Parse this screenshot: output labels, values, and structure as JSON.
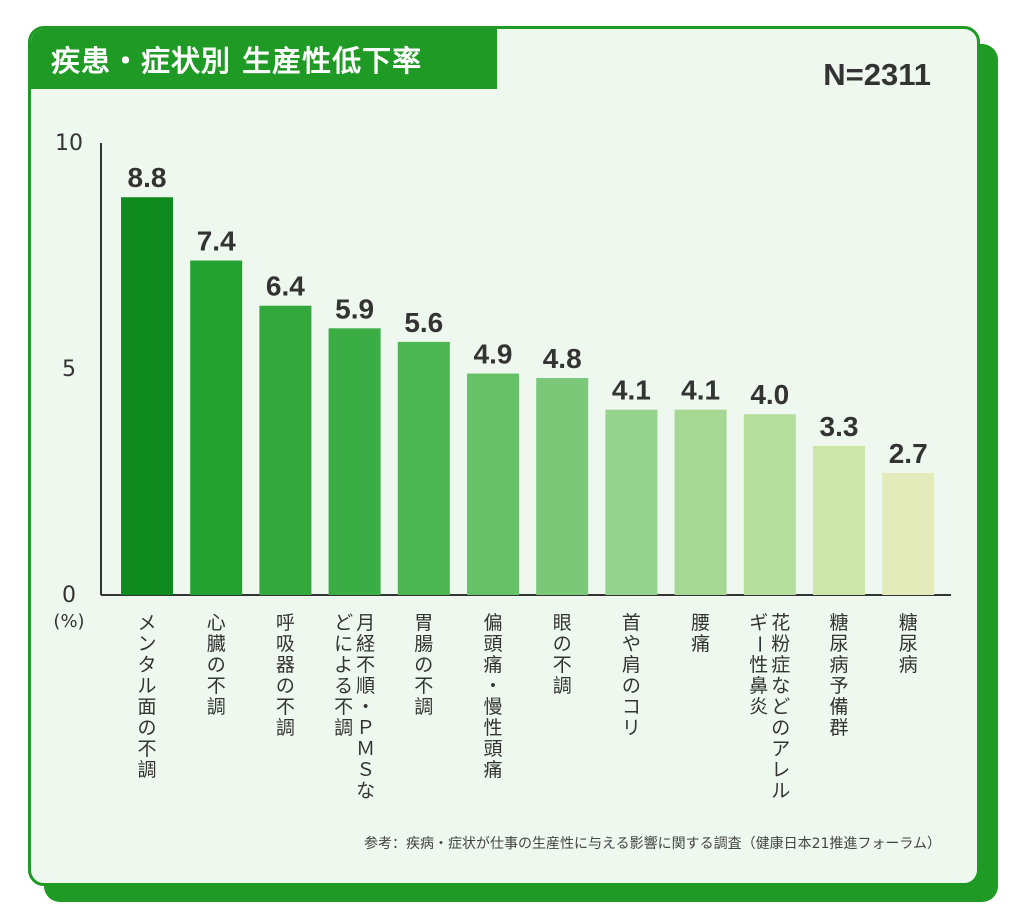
{
  "header": {
    "title": "疾患・症状別 生産性低下率",
    "sample_size": "N=2311"
  },
  "note": "参考：疾病・症状が仕事の生産性に与える影響に関する調査（健康日本21推進フォーラム）",
  "colors": {
    "brand_green": "#1f9a24",
    "card_bg": "#eef8ee",
    "bar_gradient": [
      "#0e8a1e",
      "#23a232",
      "#33a83c",
      "#3bad45",
      "#4bb652",
      "#67c167",
      "#7ac878",
      "#94d28d",
      "#a5d893",
      "#b6de9d",
      "#cfe6ab",
      "#e3ebbb"
    ]
  },
  "chart_data": {
    "type": "bar",
    "title": "疾患・症状別 生産性低下率",
    "unit_label": "(%)",
    "ylim": [
      0,
      10
    ],
    "yticks": [
      0,
      5,
      10
    ],
    "grid": false,
    "categories": [
      "メンタル面の不調",
      "心臓の不調",
      "呼吸器の不調",
      "月経不順・ＰＭＳなどによる不調",
      "胃腸の不調",
      "偏頭痛・慢性頭痛",
      "眼の不調",
      "首や肩のコリ",
      "腰痛",
      "花粉症などのアレルギー性鼻炎",
      "糖尿病予備群",
      "糖尿病"
    ],
    "values": [
      8.8,
      7.4,
      6.4,
      5.9,
      5.6,
      4.9,
      4.8,
      4.1,
      4.1,
      4.0,
      3.3,
      2.7
    ],
    "value_labels": [
      "8.8",
      "7.4",
      "6.4",
      "5.9",
      "5.6",
      "4.9",
      "4.8",
      "4.1",
      "4.1",
      "4.0",
      "3.3",
      "2.7"
    ]
  }
}
